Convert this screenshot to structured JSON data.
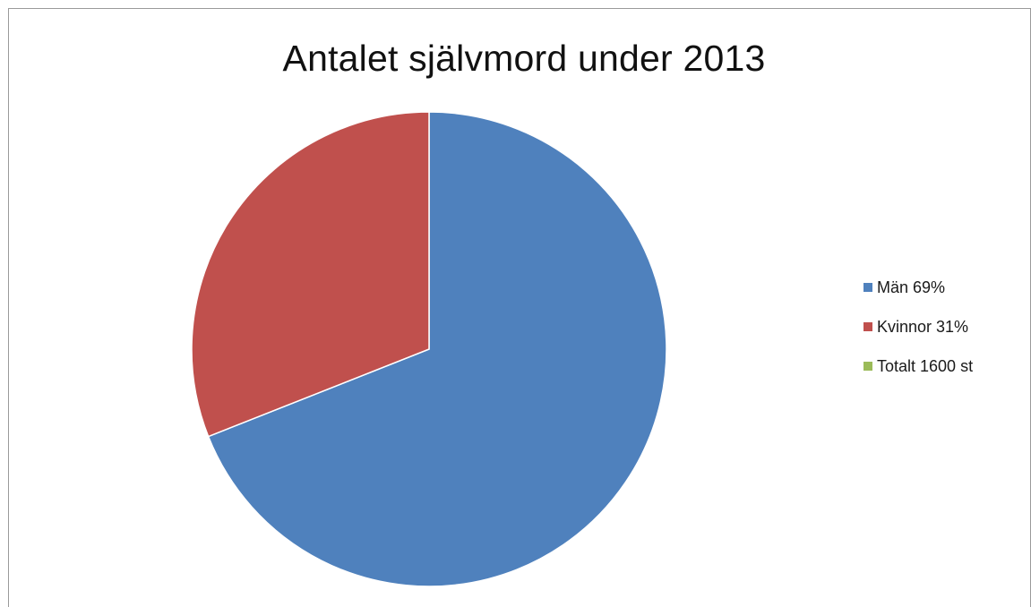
{
  "chart_data": {
    "type": "pie",
    "title": "Antalet självmord under 2013",
    "categories": [
      "Män 69%",
      "Kvinnor 31%",
      "Totalt 1600 st"
    ],
    "values": [
      69,
      31,
      0
    ],
    "colors": [
      "#4f81bd",
      "#c0504d",
      "#9bbb59"
    ],
    "legend_position": "right",
    "start_angle_deg": 0,
    "direction": "clockwise"
  }
}
